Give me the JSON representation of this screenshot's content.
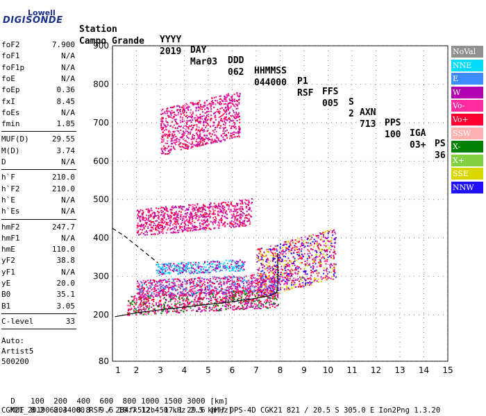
{
  "logo": {
    "top": "Lowell",
    "main": "DIGISONDE"
  },
  "header": {
    "labels": [
      "Station",
      "YYYY",
      "DAY",
      "DDD",
      "HHMMSS",
      "P1",
      "FFS",
      "S",
      "AXN",
      "PPS",
      "IGA",
      "PS"
    ],
    "values": [
      "Campo Grande",
      "2019",
      "Mar03",
      "062",
      "044000",
      "RSF",
      "005",
      "2",
      "713",
      "100",
      "03+",
      "36"
    ]
  },
  "params": {
    "group1": [
      {
        "k": "foF2",
        "v": "7.900"
      },
      {
        "k": "foF1",
        "v": "N/A"
      },
      {
        "k": "foF1p",
        "v": "N/A"
      },
      {
        "k": "foE",
        "v": "N/A"
      },
      {
        "k": "foEp",
        "v": "0.36"
      },
      {
        "k": "fxI",
        "v": "8.45"
      },
      {
        "k": "foEs",
        "v": "N/A"
      },
      {
        "k": "fmin",
        "v": "1.85"
      }
    ],
    "group2": [
      {
        "k": "MUF(D)",
        "v": "29.55"
      },
      {
        "k": "M(D)",
        "v": "3.74"
      },
      {
        "k": "D",
        "v": "N/A"
      }
    ],
    "group3": [
      {
        "k": "h`F",
        "v": "210.0"
      },
      {
        "k": "h`F2",
        "v": "210.0"
      },
      {
        "k": "h`E",
        "v": "N/A"
      },
      {
        "k": "h`Es",
        "v": "N/A"
      }
    ],
    "group4": [
      {
        "k": "hmF2",
        "v": "247.7"
      },
      {
        "k": "hmF1",
        "v": "N/A"
      },
      {
        "k": "hmE",
        "v": "110.0"
      },
      {
        "k": "yF2",
        "v": "38.8"
      },
      {
        "k": "yF1",
        "v": "N/A"
      },
      {
        "k": "yE",
        "v": "20.0"
      },
      {
        "k": "B0",
        "v": "35.1"
      },
      {
        "k": "B1",
        "v": "3.05"
      }
    ],
    "group5": [
      {
        "k": "C-level",
        "v": "33"
      }
    ],
    "auto": [
      "Auto:",
      "Artist5",
      "500200"
    ]
  },
  "legend": [
    {
      "label": "NoVal",
      "color": "#909090"
    },
    {
      "label": "NNE",
      "color": "#00dcff"
    },
    {
      "label": "E",
      "color": "#3c8cff"
    },
    {
      "label": "W",
      "color": "#b000b0"
    },
    {
      "label": "Vo-",
      "color": "#ff2ca0"
    },
    {
      "label": "Vo+",
      "color": "#ff0030"
    },
    {
      "label": "SSW",
      "color": "#ffb0b0"
    },
    {
      "label": "X-",
      "color": "#008000"
    },
    {
      "label": "X+",
      "color": "#80d040"
    },
    {
      "label": "SSE",
      "color": "#d8d800"
    },
    {
      "label": "NNW",
      "color": "#2010ff"
    }
  ],
  "footer": {
    "d_label": "D",
    "d_values": "100  200  400  600  800 1000 1500 3000 [km]",
    "muf_label": "MUF",
    "muf_values": "8.2  8.3  8.8  9.6 10.7 12.4 17.1 29.6 [MHz]",
    "file_line": "CGK21_2019062044000.RSF / 284fx512h 50 kHz 2.5 km / DPS-4D CGK21 821 / 20.5 S 305.0 E Ion2Png 1.3.20"
  },
  "chart_data": {
    "type": "scatter",
    "xlim": [
      1,
      15
    ],
    "ylim": [
      80,
      900
    ],
    "x_ticks": [
      1,
      2,
      3,
      4,
      5,
      6,
      7,
      8,
      9,
      10,
      11,
      12,
      13,
      14,
      15
    ],
    "y_ticks": [
      80,
      200,
      300,
      400,
      500,
      600,
      700,
      800,
      900
    ],
    "xlabel": "",
    "ylabel": "",
    "grid": true,
    "traces": [
      {
        "name": "O-trace profile (solid)",
        "x": [
          1.1,
          2,
          3,
          4,
          5,
          6,
          7,
          7.6,
          7.85,
          7.9
        ],
        "y": [
          195,
          205,
          213,
          220,
          227,
          234,
          243,
          250,
          258,
          275
        ]
      },
      {
        "name": "Topside extrapolation (dashed)",
        "x": [
          1.0,
          1.5,
          2.0,
          2.5,
          2.9
        ],
        "y": [
          425,
          405,
          380,
          355,
          335
        ]
      },
      {
        "name": "Vertical at foF2",
        "x": [
          7.9,
          7.9
        ],
        "y": [
          275,
          360
        ]
      }
    ],
    "clusters": [
      {
        "x0": 1.6,
        "x1": 7.9,
        "y0": 210,
        "y1": 260,
        "colors": [
          "#ff2ca0",
          "#ff0030",
          "#b000b0",
          "#008000"
        ]
      },
      {
        "x0": 2.0,
        "x1": 8.0,
        "y0": 255,
        "y1": 300,
        "colors": [
          "#ff2ca0",
          "#ff0030",
          "#b000b0",
          "#3c8cff"
        ]
      },
      {
        "x0": 2.8,
        "x1": 6.5,
        "y0": 310,
        "y1": 340,
        "colors": [
          "#00dcff",
          "#3c8cff",
          "#b000b0"
        ]
      },
      {
        "x0": 7.0,
        "x1": 10.3,
        "y0": 270,
        "y1": 400,
        "colors": [
          "#ff2ca0",
          "#ff0030",
          "#b000b0",
          "#d8d800",
          "#2010ff"
        ]
      },
      {
        "x0": 2.0,
        "x1": 6.8,
        "y0": 420,
        "y1": 490,
        "colors": [
          "#ff2ca0",
          "#ff0030",
          "#b000b0"
        ]
      },
      {
        "x0": 3.0,
        "x1": 6.3,
        "y0": 640,
        "y1": 760,
        "colors": [
          "#ff2ca0",
          "#ff0030",
          "#b000b0"
        ]
      }
    ]
  }
}
